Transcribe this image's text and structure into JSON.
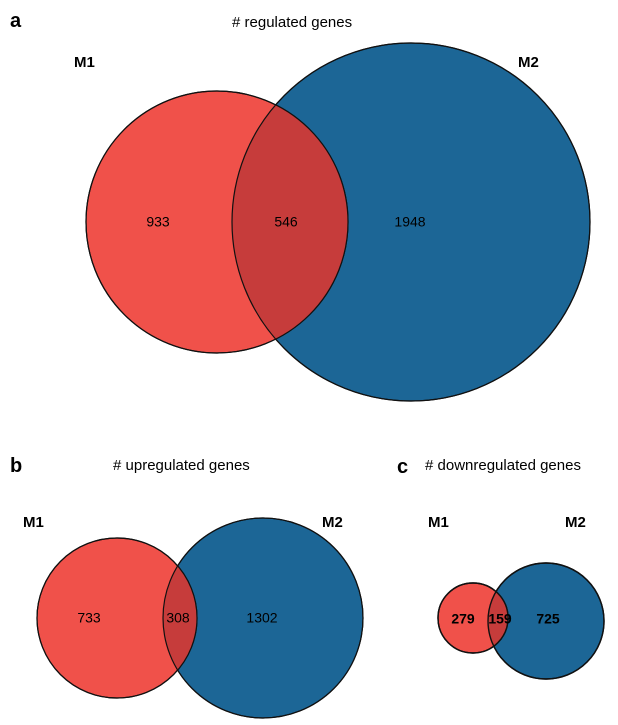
{
  "colors": {
    "m1": "#f0514a",
    "m2": "#1c6696",
    "overlap": "#c63c3b",
    "stroke": "#111111"
  },
  "panels": {
    "a": {
      "letter": "a",
      "title": "# regulated genes",
      "set1": "M1",
      "set2": "M2",
      "only1": "933",
      "both": "546",
      "only2": "1948"
    },
    "b": {
      "letter": "b",
      "title": "# upregulated genes",
      "set1": "M1",
      "set2": "M2",
      "only1": "733",
      "both": "308",
      "only2": "1302"
    },
    "c": {
      "letter": "c",
      "title": "# downregulated genes",
      "set1": "M1",
      "set2": "M2",
      "only1": "279",
      "both": "159",
      "only2": "725"
    }
  }
}
